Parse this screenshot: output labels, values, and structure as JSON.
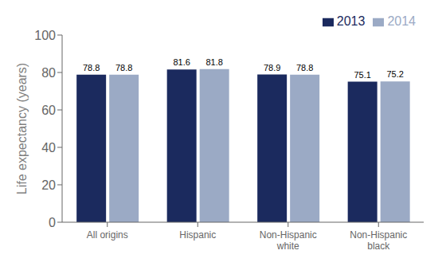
{
  "chart_data": {
    "type": "bar",
    "categories": [
      "All origins",
      "Hispanic",
      "Non-Hispanic\nwhite",
      "Non-Hispanic\nblack"
    ],
    "series": [
      {
        "name": "2013",
        "color": "#1b2a5e",
        "values": [
          78.8,
          81.6,
          78.9,
          75.1
        ]
      },
      {
        "name": "2014",
        "color": "#9baac5",
        "values": [
          78.8,
          81.8,
          78.8,
          75.2
        ]
      }
    ],
    "ylabel": "Life expectancy (years)",
    "ylim": [
      0,
      100
    ],
    "yticks": [
      0,
      20,
      40,
      60,
      80,
      100
    ],
    "grid": false,
    "legend": "upper right",
    "data_labels": true
  }
}
